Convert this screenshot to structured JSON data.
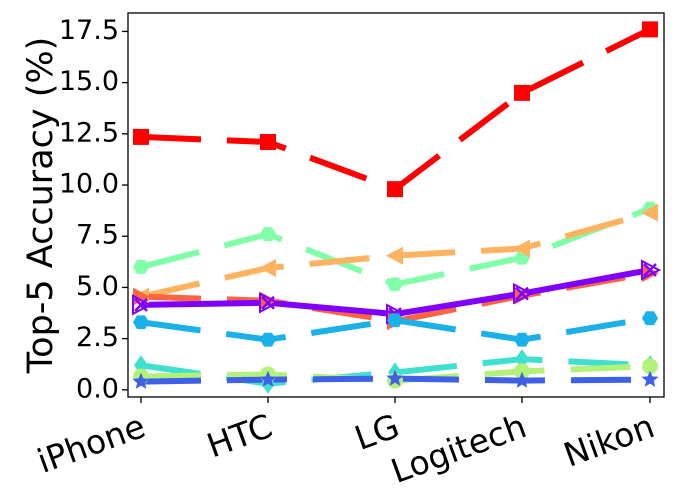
{
  "chart_data": {
    "type": "line",
    "title": "",
    "xlabel": "",
    "ylabel": "Top-5 Accuracy (%)",
    "categories": [
      "iPhone",
      "HTC",
      "LG",
      "Logitech",
      "Nikon"
    ],
    "ylim": [
      -0.35,
      18.4
    ],
    "yticks": [
      0.0,
      2.5,
      5.0,
      7.5,
      10.0,
      12.5,
      15.0,
      17.5
    ],
    "ytick_labels": [
      "0.0",
      "2.5",
      "5.0",
      "7.5",
      "10.0",
      "12.5",
      "15.0",
      "17.5"
    ],
    "grid": false,
    "legend": "none",
    "series": [
      {
        "color": "#ff0000",
        "marker": "square",
        "dash": "long",
        "values": [
          12.35,
          12.1,
          9.8,
          14.5,
          17.6
        ]
      },
      {
        "color": "#80ffa8",
        "marker": "hexagon",
        "dash": "long",
        "values": [
          6.0,
          7.6,
          5.15,
          6.45,
          8.85
        ]
      },
      {
        "color": "#ffb260",
        "marker": "triangle-left",
        "dash": "long",
        "values": [
          4.55,
          5.95,
          6.55,
          6.9,
          8.65
        ]
      },
      {
        "color": "#ff6440",
        "marker": "triangle-right",
        "dash": "long",
        "values": [
          4.55,
          4.35,
          3.35,
          4.6,
          5.7
        ]
      },
      {
        "color": "#8000ff",
        "marker": "x",
        "dash": "solid",
        "values": [
          4.15,
          4.25,
          3.7,
          4.7,
          5.85
        ]
      },
      {
        "color": "#1ab0e8",
        "marker": "hexagon",
        "dash": "long",
        "values": [
          3.3,
          2.45,
          3.4,
          2.45,
          3.5
        ]
      },
      {
        "color": "#40e0d0",
        "marker": "diamond",
        "dash": "long",
        "values": [
          1.2,
          0.3,
          0.85,
          1.5,
          1.2
        ]
      },
      {
        "color": "#b2f27a",
        "marker": "circle",
        "dash": "long",
        "values": [
          0.65,
          0.75,
          0.45,
          0.9,
          1.15
        ]
      },
      {
        "color": "#4060e8",
        "marker": "star",
        "dash": "long",
        "values": [
          0.4,
          0.5,
          0.55,
          0.45,
          0.5
        ]
      }
    ]
  }
}
